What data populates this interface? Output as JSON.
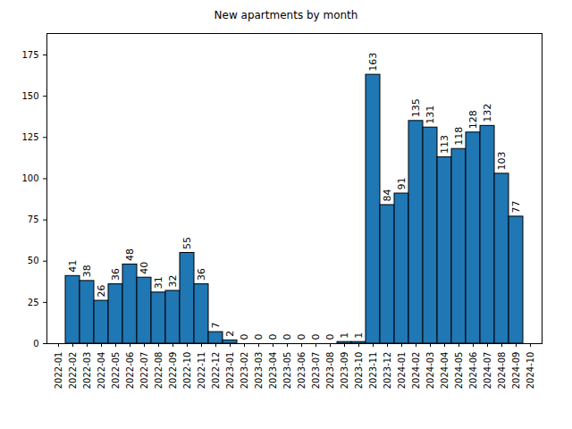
{
  "chart_data": {
    "type": "bar",
    "title": "New apartments by month",
    "categories": [
      "2022-01",
      "2022-02",
      "2022-03",
      "2022-04",
      "2022-05",
      "2022-06",
      "2022-07",
      "2022-08",
      "2022-09",
      "2022-10",
      "2022-11",
      "2022-12",
      "2023-01",
      "2023-02",
      "2023-03",
      "2023-04",
      "2023-05",
      "2023-06",
      "2023-07",
      "2023-08",
      "2023-09",
      "2023-10",
      "2023-11",
      "2023-12",
      "2024-01",
      "2024-02",
      "2024-03",
      "2024-04",
      "2024-05",
      "2024-06",
      "2024-07",
      "2024-08",
      "2024-09",
      "2024-10"
    ],
    "values": [
      null,
      41,
      38,
      26,
      36,
      48,
      40,
      31,
      32,
      55,
      36,
      7,
      2,
      0,
      0,
      0,
      0,
      0,
      0,
      0,
      1,
      1,
      163,
      84,
      91,
      135,
      131,
      113,
      118,
      128,
      132,
      103,
      77,
      null
    ],
    "color": "#1f77b4",
    "ylim": [
      0,
      188
    ],
    "yticks": [
      0,
      25,
      50,
      75,
      100,
      125,
      150,
      175
    ],
    "grid": false,
    "data_labels": true
  }
}
